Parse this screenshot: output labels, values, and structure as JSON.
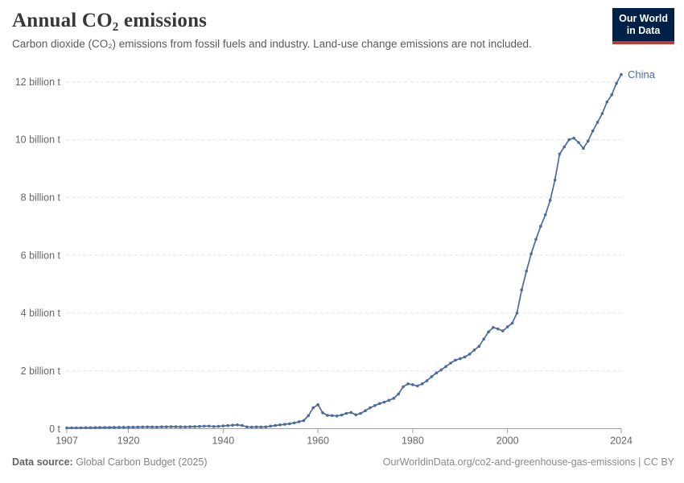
{
  "header": {
    "title": "Annual CO₂ emissions",
    "subtitle": "Carbon dioxide (CO₂) emissions from fossil fuels and industry. Land-use change emissions are not included.",
    "logo": {
      "line1": "Our World",
      "line2": "in Data"
    }
  },
  "footer": {
    "source_label": "Data source:",
    "source_value": " Global Carbon Budget (2025)",
    "link": "OurWorldinData.org/co2-and-greenhouse-gas-emissions | CC BY"
  },
  "colors": {
    "line": "#4c6a9c",
    "entity_label": "#4c6a9c",
    "grid": "#dddddd",
    "axis": "#a1a1a1",
    "tick_text": "#666666",
    "logo_bg": "#002147",
    "logo_red": "#c3392f"
  },
  "chart_data": {
    "type": "line",
    "title": "Annual CO₂ emissions",
    "series_name": "China",
    "unit": "billion t",
    "grid": "horizontal dashed",
    "legend_position": "end-of-line label",
    "xlim": [
      1907,
      2024
    ],
    "ylim": [
      0,
      12.4
    ],
    "xtick_values": [
      1907,
      1920,
      1940,
      1960,
      1980,
      2000,
      2024
    ],
    "ytick_values": [
      0,
      2,
      4,
      6,
      8,
      10,
      12
    ],
    "ytick_labels": [
      "0 t",
      "2 billion t",
      "4 billion t",
      "6 billion t",
      "8 billion t",
      "10 billion t",
      "12 billion t"
    ],
    "x": [
      1907,
      1908,
      1909,
      1910,
      1911,
      1912,
      1913,
      1914,
      1915,
      1916,
      1917,
      1918,
      1919,
      1920,
      1921,
      1922,
      1923,
      1924,
      1925,
      1926,
      1927,
      1928,
      1929,
      1930,
      1931,
      1932,
      1933,
      1934,
      1935,
      1936,
      1937,
      1938,
      1939,
      1940,
      1941,
      1942,
      1943,
      1944,
      1945,
      1946,
      1947,
      1948,
      1949,
      1950,
      1951,
      1952,
      1953,
      1954,
      1955,
      1956,
      1957,
      1958,
      1959,
      1960,
      1961,
      1962,
      1963,
      1964,
      1965,
      1966,
      1967,
      1968,
      1969,
      1970,
      1971,
      1972,
      1973,
      1974,
      1975,
      1976,
      1977,
      1978,
      1979,
      1980,
      1981,
      1982,
      1983,
      1984,
      1985,
      1986,
      1987,
      1988,
      1989,
      1990,
      1991,
      1992,
      1993,
      1994,
      1995,
      1996,
      1997,
      1998,
      1999,
      2000,
      2001,
      2002,
      2003,
      2004,
      2005,
      2006,
      2007,
      2008,
      2009,
      2010,
      2011,
      2012,
      2013,
      2014,
      2015,
      2016,
      2017,
      2018,
      2019,
      2020,
      2021,
      2022,
      2023,
      2024
    ],
    "y": [
      0.025,
      0.027,
      0.029,
      0.031,
      0.033,
      0.034,
      0.037,
      0.039,
      0.041,
      0.043,
      0.045,
      0.047,
      0.048,
      0.05,
      0.052,
      0.055,
      0.058,
      0.06,
      0.059,
      0.057,
      0.063,
      0.065,
      0.068,
      0.066,
      0.064,
      0.062,
      0.066,
      0.072,
      0.078,
      0.085,
      0.088,
      0.075,
      0.082,
      0.095,
      0.105,
      0.12,
      0.13,
      0.11,
      0.06,
      0.055,
      0.062,
      0.058,
      0.06,
      0.09,
      0.11,
      0.13,
      0.15,
      0.17,
      0.2,
      0.24,
      0.28,
      0.45,
      0.72,
      0.83,
      0.55,
      0.46,
      0.45,
      0.44,
      0.47,
      0.53,
      0.56,
      0.48,
      0.53,
      0.62,
      0.72,
      0.8,
      0.87,
      0.92,
      0.98,
      1.05,
      1.2,
      1.45,
      1.55,
      1.52,
      1.48,
      1.55,
      1.66,
      1.8,
      1.93,
      2.03,
      2.15,
      2.27,
      2.37,
      2.42,
      2.48,
      2.58,
      2.72,
      2.85,
      3.1,
      3.35,
      3.5,
      3.45,
      3.38,
      3.52,
      3.65,
      4.0,
      4.8,
      5.45,
      6.05,
      6.55,
      7.0,
      7.4,
      7.9,
      8.6,
      9.5,
      9.75,
      10.0,
      10.05,
      9.9,
      9.7,
      9.95,
      10.3,
      10.6,
      10.9,
      11.3,
      11.55,
      11.95,
      12.25
    ]
  }
}
